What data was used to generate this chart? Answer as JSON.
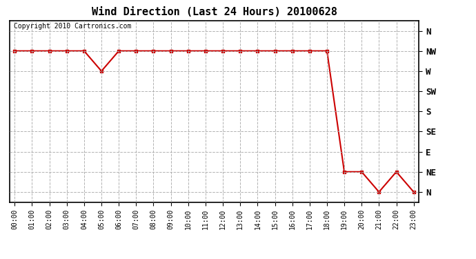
{
  "title": "Wind Direction (Last 24 Hours) 20100628",
  "copyright_text": "Copyright 2010 Cartronics.com",
  "background_color": "#ffffff",
  "line_color": "#cc0000",
  "grid_color": "#aaaaaa",
  "ytick_labels": [
    "N",
    "NW",
    "W",
    "SW",
    "S",
    "SE",
    "E",
    "NE",
    "N"
  ],
  "ytick_values": [
    8,
    7,
    6,
    5,
    4,
    3,
    2,
    1,
    0
  ],
  "hours": [
    0,
    1,
    2,
    3,
    4,
    5,
    6,
    7,
    8,
    9,
    10,
    11,
    12,
    13,
    14,
    15,
    16,
    17,
    18,
    19,
    20,
    21,
    22,
    23
  ],
  "wind_values": [
    7,
    7,
    7,
    7,
    7,
    6,
    7,
    7,
    7,
    7,
    7,
    7,
    7,
    7,
    7,
    7,
    7,
    7,
    7,
    1,
    1,
    0,
    1,
    0
  ],
  "xlim": [
    0,
    23
  ],
  "ylim": [
    0,
    8
  ],
  "figsize": [
    6.9,
    3.75
  ],
  "dpi": 100
}
